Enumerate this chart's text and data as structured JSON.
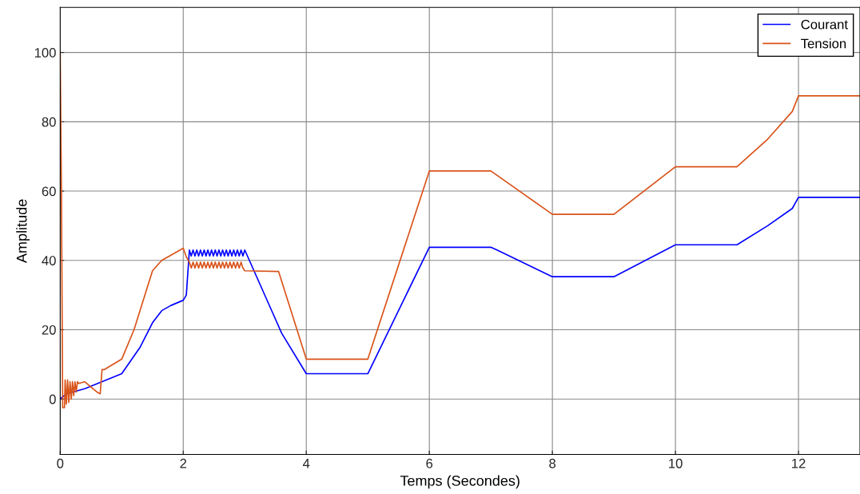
{
  "chart_data": {
    "type": "line",
    "xlabel": "Temps (Secondes)",
    "ylabel": "Amplitude",
    "xlim": [
      0,
      13
    ],
    "ylim": [
      -16,
      113
    ],
    "xticks": [
      0,
      2,
      4,
      6,
      8,
      10,
      12
    ],
    "yticks": [
      0,
      20,
      40,
      60,
      80,
      100
    ],
    "grid": true,
    "legend": "top right",
    "line_style": "solid",
    "series": [
      {
        "name": "Courant",
        "color": "#0000ff",
        "x": [
          0,
          0.1,
          0.4,
          1.0,
          1.3,
          1.5,
          1.65,
          1.8,
          2.0,
          2.05,
          2.1,
          2.13,
          2.16,
          2.19,
          2.22,
          2.25,
          2.28,
          2.31,
          2.34,
          2.37,
          2.4,
          2.43,
          2.46,
          2.49,
          2.52,
          2.55,
          2.58,
          2.61,
          2.64,
          2.67,
          2.7,
          2.73,
          2.76,
          2.79,
          2.82,
          2.85,
          2.88,
          2.91,
          2.94,
          2.97,
          3.0,
          3.5,
          3.6,
          4.0,
          5.0,
          6.0,
          7.0,
          7.1,
          8.0,
          9.0,
          10.0,
          11.0,
          11.5,
          11.9,
          12.0,
          13
        ],
        "values": [
          0,
          1.5,
          3,
          7.3,
          15,
          22,
          25.5,
          27,
          28.5,
          30,
          43,
          41.3,
          43,
          41.3,
          43,
          41.3,
          43,
          41.3,
          43,
          41.3,
          43,
          41.3,
          43,
          41.3,
          43,
          41.3,
          43,
          41.3,
          43,
          41.3,
          43,
          41.3,
          43,
          41.3,
          43,
          41.3,
          43,
          41.3,
          43,
          41.3,
          43,
          23,
          19,
          7.3,
          7.3,
          43.8,
          43.8,
          43,
          35.3,
          35.3,
          44.5,
          44.5,
          50,
          55,
          58.2,
          58.2
        ]
      },
      {
        "name": "Tension",
        "color": "#d95319",
        "x": [
          0,
          0.02,
          0.04,
          0.07,
          0.08,
          0.1,
          0.12,
          0.14,
          0.16,
          0.18,
          0.2,
          0.22,
          0.24,
          0.26,
          0.28,
          0.3,
          0.4,
          0.6,
          0.65,
          0.68,
          0.72,
          1.0,
          1.2,
          1.5,
          1.65,
          1.8,
          2.0,
          2.05,
          2.1,
          2.13,
          2.16,
          2.19,
          2.22,
          2.25,
          2.28,
          2.31,
          2.34,
          2.37,
          2.4,
          2.43,
          2.46,
          2.49,
          2.52,
          2.55,
          2.58,
          2.61,
          2.64,
          2.67,
          2.7,
          2.73,
          2.76,
          2.79,
          2.82,
          2.85,
          2.88,
          2.91,
          2.94,
          2.97,
          3.0,
          3.55,
          4.0,
          5.0,
          6.0,
          7.0,
          8.0,
          9.0,
          10.0,
          11.0,
          11.5,
          11.9,
          12.0,
          13
        ],
        "values": [
          100,
          60,
          -2.5,
          -2.5,
          5.5,
          -1.5,
          5.5,
          -1,
          5,
          0,
          5,
          1,
          5,
          2,
          5,
          4.5,
          5,
          2,
          1.5,
          8.5,
          8.5,
          11.5,
          20,
          37,
          40,
          41.5,
          43.5,
          41,
          39.5,
          37.8,
          39.5,
          37.8,
          39.5,
          37.8,
          39.5,
          37.8,
          39.5,
          37.8,
          39.5,
          37.8,
          39.5,
          37.8,
          39.5,
          37.8,
          39.5,
          37.8,
          39.5,
          37.8,
          39.5,
          37.8,
          39.5,
          37.8,
          39.5,
          37.8,
          39.5,
          37.8,
          39.5,
          37.8,
          37,
          36.8,
          11.5,
          11.5,
          65.8,
          65.8,
          53.3,
          53.3,
          67,
          67,
          75,
          83,
          87.5,
          87.5
        ]
      }
    ]
  }
}
